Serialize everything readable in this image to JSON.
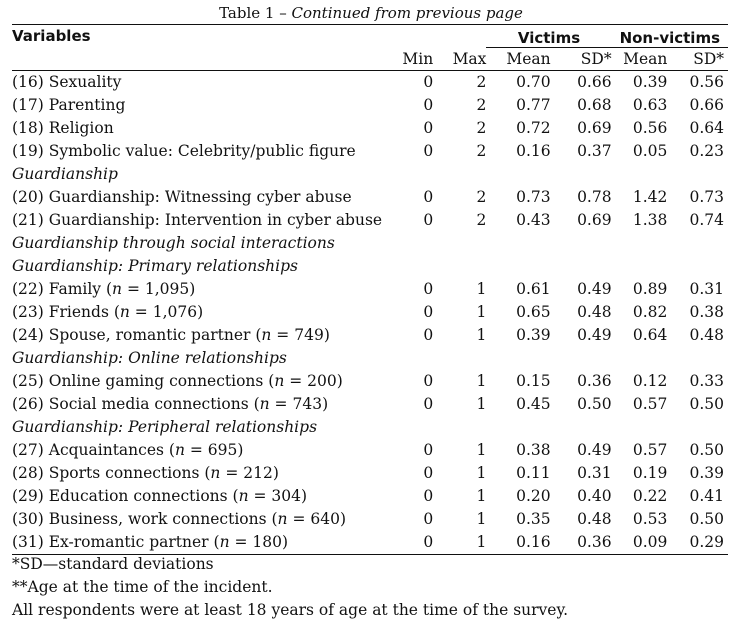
{
  "caption": {
    "label": "Table 1",
    "sep": " – ",
    "continued": "Continued from previous page"
  },
  "headers": {
    "variables": "Variables",
    "victims": "Victims",
    "nonvictims": "Non-victims",
    "min": "Min",
    "max": "Max",
    "mean": "Mean",
    "sd": "SD*"
  },
  "rows": [
    {
      "kind": "data",
      "label": "(16) Sexuality",
      "min": "0",
      "max": "2",
      "v_mean": "0.70",
      "v_sd": "0.66",
      "nv_mean": "0.39",
      "nv_sd": "0.56"
    },
    {
      "kind": "data",
      "label": "(17) Parenting",
      "min": "0",
      "max": "2",
      "v_mean": "0.77",
      "v_sd": "0.68",
      "nv_mean": "0.63",
      "nv_sd": "0.66"
    },
    {
      "kind": "data",
      "label": "(18) Religion",
      "min": "0",
      "max": "2",
      "v_mean": "0.72",
      "v_sd": "0.69",
      "nv_mean": "0.56",
      "nv_sd": "0.64"
    },
    {
      "kind": "data",
      "label": "(19) Symbolic value: Celebrity/public figure",
      "min": "0",
      "max": "2",
      "v_mean": "0.16",
      "v_sd": "0.37",
      "nv_mean": "0.05",
      "nv_sd": "0.23"
    },
    {
      "kind": "section",
      "label": "Guardianship"
    },
    {
      "kind": "data",
      "label": "(20) Guardianship: Witnessing cyber abuse",
      "min": "0",
      "max": "2",
      "v_mean": "0.73",
      "v_sd": "0.78",
      "nv_mean": "1.42",
      "nv_sd": "0.73"
    },
    {
      "kind": "data",
      "label": "(21) Guardianship: Intervention in cyber abuse",
      "min": "0",
      "max": "2",
      "v_mean": "0.43",
      "v_sd": "0.69",
      "nv_mean": "1.38",
      "nv_sd": "0.74"
    },
    {
      "kind": "section",
      "label": "Guardianship through social interactions"
    },
    {
      "kind": "section",
      "label": "Guardianship: Primary relationships"
    },
    {
      "kind": "data",
      "label": "(22) Family (",
      "n": "1,095",
      "min": "0",
      "max": "1",
      "v_mean": "0.61",
      "v_sd": "0.49",
      "nv_mean": "0.89",
      "nv_sd": "0.31"
    },
    {
      "kind": "data",
      "label": "(23) Friends (",
      "n": "1,076",
      "min": "0",
      "max": "1",
      "v_mean": "0.65",
      "v_sd": "0.48",
      "nv_mean": "0.82",
      "nv_sd": "0.38"
    },
    {
      "kind": "data",
      "label": "(24) Spouse, romantic partner (",
      "n": "749",
      "min": "0",
      "max": "1",
      "v_mean": "0.39",
      "v_sd": "0.49",
      "nv_mean": "0.64",
      "nv_sd": "0.48"
    },
    {
      "kind": "section",
      "label": "Guardianship: Online relationships"
    },
    {
      "kind": "data",
      "label": "(25) Online gaming connections (",
      "n": "200",
      "min": "0",
      "max": "1",
      "v_mean": "0.15",
      "v_sd": "0.36",
      "nv_mean": "0.12",
      "nv_sd": "0.33"
    },
    {
      "kind": "data",
      "label": "(26) Social media connections (",
      "n": "743",
      "min": "0",
      "max": "1",
      "v_mean": "0.45",
      "v_sd": "0.50",
      "nv_mean": "0.57",
      "nv_sd": "0.50"
    },
    {
      "kind": "section",
      "label": "Guardianship: Peripheral relationships"
    },
    {
      "kind": "data",
      "label": "(27) Acquaintances (",
      "n": "695",
      "min": "0",
      "max": "1",
      "v_mean": "0.38",
      "v_sd": "0.49",
      "nv_mean": "0.57",
      "nv_sd": "0.50"
    },
    {
      "kind": "data",
      "label": "(28) Sports connections (",
      "n": "212",
      "min": "0",
      "max": "1",
      "v_mean": "0.11",
      "v_sd": "0.31",
      "nv_mean": "0.19",
      "nv_sd": "0.39"
    },
    {
      "kind": "data",
      "label": "(29) Education connections (",
      "n": "304",
      "min": "0",
      "max": "1",
      "v_mean": "0.20",
      "v_sd": "0.40",
      "nv_mean": "0.22",
      "nv_sd": "0.41"
    },
    {
      "kind": "data",
      "label": "(30) Business, work connections (",
      "n": "640",
      "min": "0",
      "max": "1",
      "v_mean": "0.35",
      "v_sd": "0.48",
      "nv_mean": "0.53",
      "nv_sd": "0.50"
    },
    {
      "kind": "data",
      "label": "(31) Ex-romantic partner (",
      "n": "180",
      "min": "0",
      "max": "1",
      "v_mean": "0.16",
      "v_sd": "0.36",
      "nv_mean": "0.09",
      "nv_sd": "0.29"
    }
  ],
  "n_prefix": "n",
  "n_eq": " = ",
  "n_suffix": ")",
  "notes": [
    "*SD—standard deviations",
    "**Age at the time of the incident.",
    "All respondents were at least 18 years of age at the time of the survey."
  ]
}
